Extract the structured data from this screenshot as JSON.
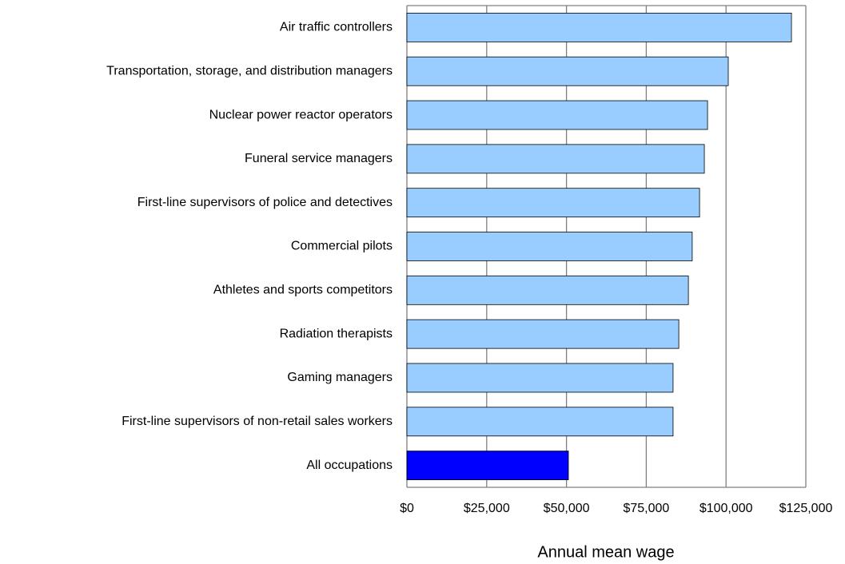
{
  "chart_data": {
    "type": "barh",
    "x_label": "Annual mean wage",
    "categories": [
      "Air traffic controllers",
      "Transportation, storage, and distribution managers",
      "Nuclear power reactor operators",
      "Funeral service managers",
      "First-line supervisors of police and detectives",
      "Commercial pilots",
      "Athletes and sports competitors",
      "Radiation therapists",
      "Gaming managers",
      "First-line supervisors of non-retail sales workers",
      "All occupations"
    ],
    "values": [
      120500,
      100700,
      94200,
      93200,
      91700,
      89400,
      88200,
      85200,
      83400,
      83400,
      50600
    ],
    "colors": [
      "#99ccff",
      "#99ccff",
      "#99ccff",
      "#99ccff",
      "#99ccff",
      "#99ccff",
      "#99ccff",
      "#99ccff",
      "#99ccff",
      "#99ccff",
      "#0000ff"
    ],
    "xlim": [
      0,
      125000
    ],
    "xticks": [
      {
        "value": 0,
        "label": "$0"
      },
      {
        "value": 25000,
        "label": "$25,000"
      },
      {
        "value": 50000,
        "label": "$50,000"
      },
      {
        "value": 75000,
        "label": "$75,000"
      },
      {
        "value": 100000,
        "label": "$100,000"
      },
      {
        "value": 125000,
        "label": "$125,000"
      }
    ],
    "grid": true
  }
}
